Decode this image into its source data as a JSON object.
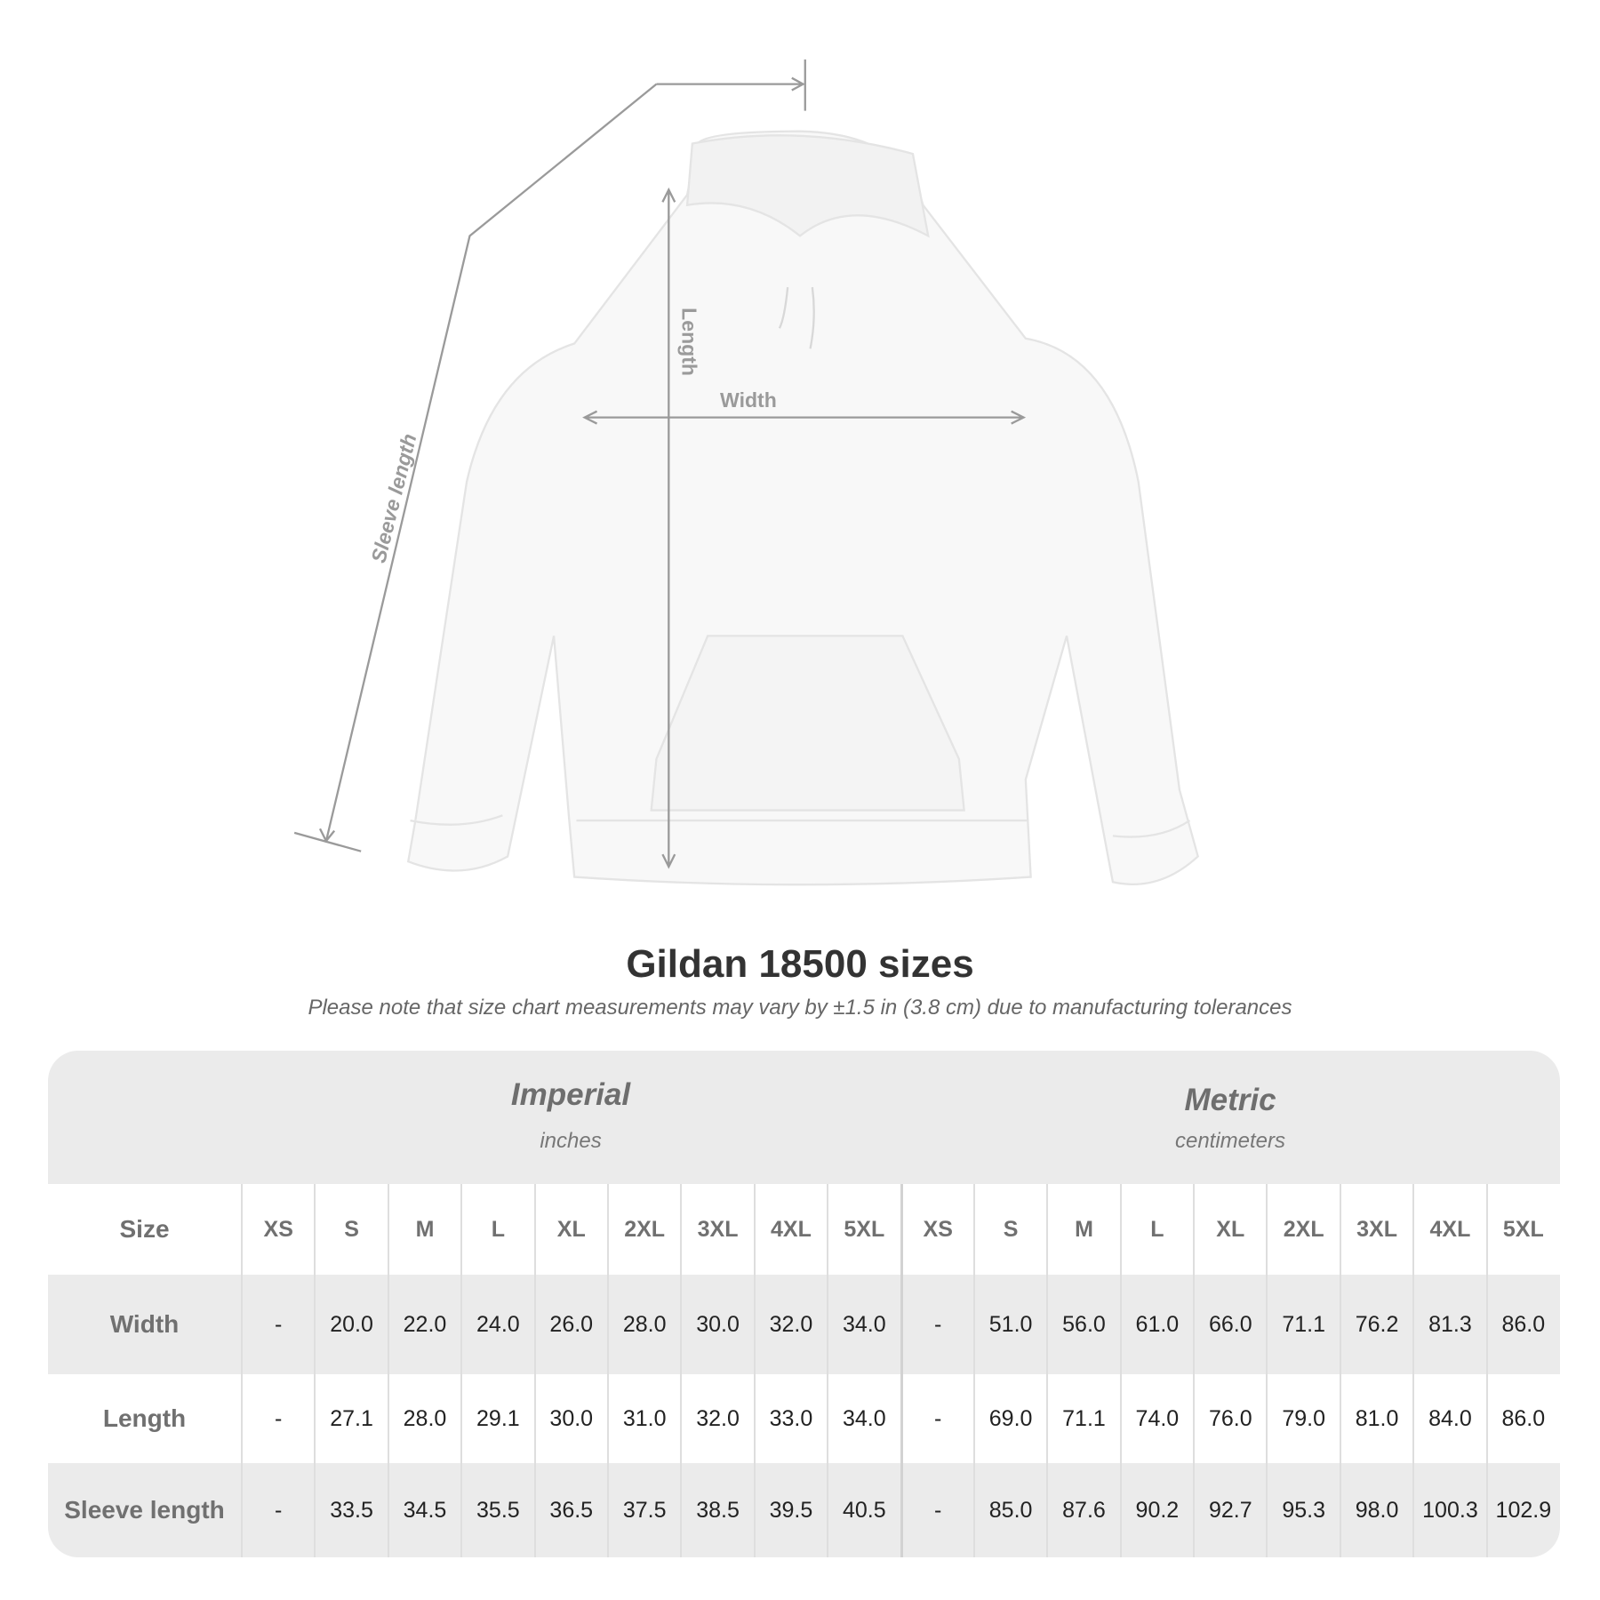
{
  "diagram": {
    "labels": {
      "length": "Length",
      "width": "Width",
      "sleeve": "Sleeve length"
    },
    "line_color": "#9a9a9a"
  },
  "title": "Gildan 18500 sizes",
  "note": "Please note that size chart measurements may vary by ±1.5 in (3.8 cm) due to manufacturing tolerances",
  "table": {
    "imperial": {
      "label": "Imperial",
      "unit": "inches"
    },
    "metric": {
      "label": "Metric",
      "unit": "centimeters"
    },
    "size_label": "Size",
    "sizes": [
      "XS",
      "S",
      "M",
      "L",
      "XL",
      "2XL",
      "3XL",
      "4XL",
      "5XL"
    ],
    "rows": [
      {
        "label": "Width",
        "imperial": [
          "-",
          "20.0",
          "22.0",
          "24.0",
          "26.0",
          "28.0",
          "30.0",
          "32.0",
          "34.0"
        ],
        "metric": [
          "-",
          "51.0",
          "56.0",
          "61.0",
          "66.0",
          "71.1",
          "76.2",
          "81.3",
          "86.0"
        ]
      },
      {
        "label": "Length",
        "imperial": [
          "-",
          "27.1",
          "28.0",
          "29.1",
          "30.0",
          "31.0",
          "32.0",
          "33.0",
          "34.0"
        ],
        "metric": [
          "-",
          "69.0",
          "71.1",
          "74.0",
          "76.0",
          "79.0",
          "81.0",
          "84.0",
          "86.0"
        ]
      },
      {
        "label": "Sleeve length",
        "imperial": [
          "-",
          "33.5",
          "34.5",
          "35.5",
          "36.5",
          "37.5",
          "38.5",
          "39.5",
          "40.5"
        ],
        "metric": [
          "-",
          "85.0",
          "87.6",
          "90.2",
          "92.7",
          "95.3",
          "98.0",
          "100.3",
          "102.9"
        ]
      }
    ]
  }
}
